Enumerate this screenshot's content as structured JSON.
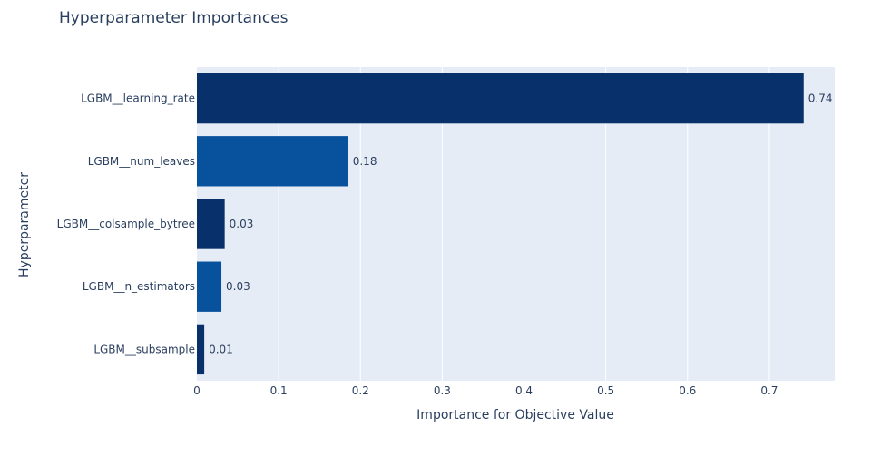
{
  "chart_data": {
    "type": "bar",
    "orientation": "horizontal",
    "title": "Hyperparameter Importances",
    "xlabel": "Importance for Objective Value",
    "ylabel": "Hyperparameter",
    "xlim": [
      0,
      0.78
    ],
    "x_ticks": [
      0,
      0.1,
      0.2,
      0.3,
      0.4,
      0.5,
      0.6,
      0.7
    ],
    "x_tick_labels": [
      "0",
      "0.1",
      "0.2",
      "0.3",
      "0.4",
      "0.5",
      "0.6",
      "0.7"
    ],
    "grid": true,
    "categories": [
      "LGBM__learning_rate",
      "LGBM__num_leaves",
      "LGBM__colsample_bytree",
      "LGBM__n_estimators",
      "LGBM__subsample"
    ],
    "values": [
      0.742,
      0.185,
      0.034,
      0.03,
      0.009
    ],
    "data_labels": [
      "0.74",
      "0.18",
      "0.03",
      "0.03",
      "0.01"
    ],
    "colors": [
      "#08306b",
      "#08519c",
      "#08306b",
      "#08519c",
      "#08306b"
    ],
    "plot_background": "#e5ecf6",
    "gridline_color": "#ffffff",
    "text_color": "#2a3f5f"
  }
}
